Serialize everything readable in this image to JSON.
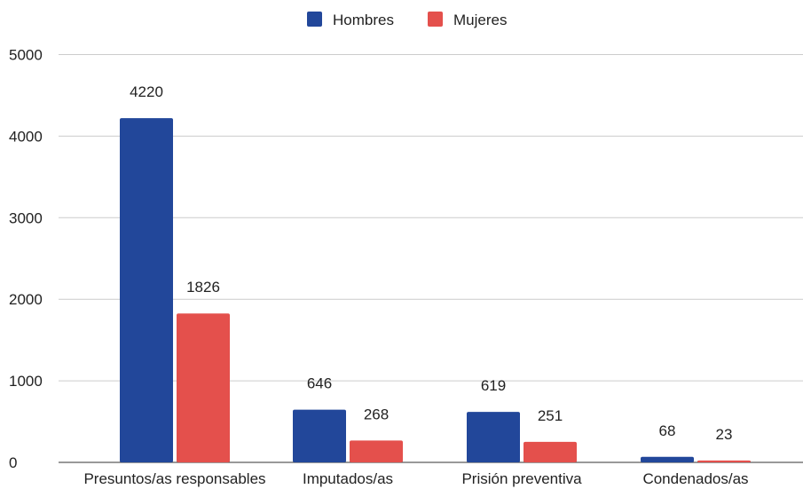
{
  "chart_data": {
    "type": "bar",
    "categories": [
      "Presuntos/as responsables",
      "Imputados/as",
      "Prisión preventiva",
      "Condenados/as"
    ],
    "series": [
      {
        "name": "Hombres",
        "values": [
          4220,
          646,
          619,
          68
        ],
        "color": "#22479a"
      },
      {
        "name": "Mujeres",
        "values": [
          1826,
          268,
          251,
          23
        ],
        "color": "#e4504c"
      }
    ],
    "y_ticks": [
      0,
      1000,
      2000,
      3000,
      4000,
      5000
    ],
    "ylim": [
      0,
      5000
    ],
    "grid": true,
    "legend_position": "top-center",
    "data_labels": true
  }
}
